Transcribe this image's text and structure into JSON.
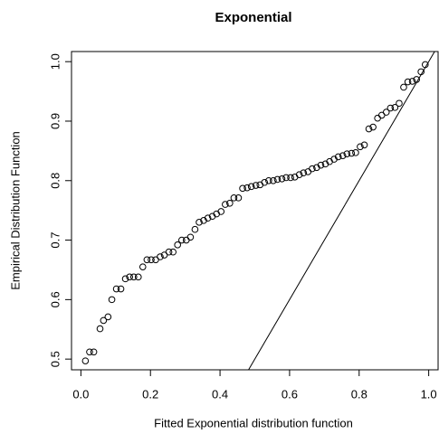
{
  "chart_data": {
    "type": "scatter",
    "title": "Exponential",
    "xlabel": "Fitted  Exponential distribution function",
    "ylabel": "Empirical Distribution Function",
    "xlim": [
      -0.027,
      1.027
    ],
    "ylim": [
      0.482,
      1.017
    ],
    "xticks": [
      {
        "value": 0,
        "label": "0.0"
      },
      0.2,
      0.4,
      0.6,
      0.8,
      {
        "value": 1,
        "label": "1.0"
      }
    ],
    "yticks": [
      0.5,
      0.6,
      0.7,
      0.8,
      0.9,
      {
        "value": 1,
        "label": "1.0"
      }
    ],
    "diagonal": true,
    "color": "#000000",
    "x": [
      0.013,
      0.025,
      0.037,
      0.055,
      0.065,
      0.078,
      0.089,
      0.102,
      0.115,
      0.128,
      0.14,
      0.152,
      0.165,
      0.178,
      0.19,
      0.202,
      0.215,
      0.228,
      0.24,
      0.253,
      0.265,
      0.278,
      0.29,
      0.303,
      0.315,
      0.328,
      0.34,
      0.353,
      0.365,
      0.378,
      0.39,
      0.403,
      0.415,
      0.428,
      0.44,
      0.453,
      0.465,
      0.478,
      0.49,
      0.503,
      0.515,
      0.528,
      0.54,
      0.553,
      0.565,
      0.578,
      0.59,
      0.603,
      0.615,
      0.628,
      0.64,
      0.653,
      0.665,
      0.678,
      0.69,
      0.703,
      0.715,
      0.728,
      0.74,
      0.753,
      0.765,
      0.778,
      0.79,
      0.803,
      0.815,
      0.828,
      0.84,
      0.853,
      0.865,
      0.878,
      0.89,
      0.903,
      0.915,
      0.928,
      0.94,
      0.953,
      0.965,
      0.978,
      0.99
    ],
    "values": [
      0.497,
      0.512,
      0.512,
      0.551,
      0.565,
      0.571,
      0.6,
      0.618,
      0.618,
      0.635,
      0.638,
      0.638,
      0.638,
      0.655,
      0.667,
      0.667,
      0.667,
      0.672,
      0.675,
      0.68,
      0.68,
      0.692,
      0.7,
      0.7,
      0.705,
      0.718,
      0.73,
      0.733,
      0.737,
      0.74,
      0.744,
      0.748,
      0.76,
      0.762,
      0.771,
      0.771,
      0.787,
      0.788,
      0.79,
      0.792,
      0.793,
      0.797,
      0.8,
      0.8,
      0.802,
      0.803,
      0.805,
      0.805,
      0.806,
      0.81,
      0.813,
      0.815,
      0.82,
      0.822,
      0.826,
      0.828,
      0.832,
      0.836,
      0.84,
      0.842,
      0.845,
      0.846,
      0.847,
      0.857,
      0.86,
      0.887,
      0.89,
      0.905,
      0.91,
      0.915,
      0.922,
      0.923,
      0.93,
      0.957,
      0.966,
      0.967,
      0.97,
      0.983,
      0.995
    ]
  }
}
